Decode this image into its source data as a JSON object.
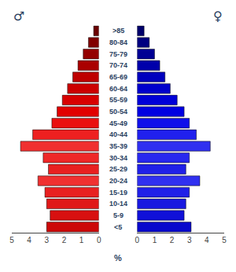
{
  "chart_data": {
    "type": "bar",
    "orientation": "horizontal",
    "categories": [
      ">85",
      "80-84",
      "75-79",
      "70-74",
      "65-69",
      "60-64",
      "55-59",
      "50-54",
      "45-49",
      "40-44",
      "35-39",
      "30-34",
      "25-29",
      "20-24",
      "15-19",
      "10-14",
      "5-9",
      "<5"
    ],
    "series": [
      {
        "name": "♂",
        "values": [
          0.3,
          0.6,
          0.9,
          1.2,
          1.5,
          1.8,
          2.1,
          2.4,
          2.7,
          3.8,
          4.5,
          3.2,
          2.9,
          3.5,
          3.1,
          3.0,
          2.8,
          3.0
        ],
        "colors": [
          "#6b0000",
          "#800000",
          "#940000",
          "#aa0000",
          "#be0000",
          "#cc0000",
          "#d80000",
          "#e20000",
          "#ea1010",
          "#ee2020",
          "#f03030",
          "#ee2828",
          "#e82020",
          "#f03030",
          "#e82020",
          "#e01818",
          "#d81010",
          "#cc0808"
        ]
      },
      {
        "name": "♀",
        "values": [
          0.4,
          0.7,
          1.0,
          1.3,
          1.6,
          1.9,
          2.3,
          2.7,
          3.0,
          3.4,
          4.2,
          3.0,
          2.8,
          3.6,
          3.0,
          2.8,
          2.7,
          3.1
        ],
        "colors": [
          "#00006b",
          "#000080",
          "#000094",
          "#0000aa",
          "#0000be",
          "#0000cc",
          "#0000d8",
          "#0000e2",
          "#1010ea",
          "#2020ee",
          "#3030f0",
          "#2828ee",
          "#2020e8",
          "#3030f0",
          "#2020e8",
          "#1818e0",
          "#1010d8",
          "#0808cc"
        ]
      }
    ],
    "xlabel": "%",
    "xlim": [
      0,
      5
    ],
    "xticks": [
      0,
      1,
      2,
      3,
      4,
      5
    ],
    "grid": false
  }
}
